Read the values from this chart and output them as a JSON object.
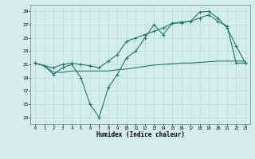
{
  "title": "",
  "xlabel": "Humidex (Indice chaleur)",
  "bg_color": "#d4eeea",
  "line_color": "#1e7a6e",
  "grid_color": "#b8ddd8",
  "xlim": [
    -0.5,
    23.5
  ],
  "ylim": [
    12,
    30
  ],
  "xticks": [
    0,
    1,
    2,
    3,
    4,
    5,
    6,
    7,
    8,
    9,
    10,
    11,
    12,
    13,
    14,
    15,
    16,
    17,
    18,
    19,
    20,
    21,
    22,
    23
  ],
  "yticks": [
    13,
    15,
    17,
    19,
    21,
    23,
    25,
    27,
    29
  ],
  "line1_x": [
    0,
    1,
    2,
    3,
    4,
    5,
    6,
    7,
    8,
    9,
    10,
    11,
    12,
    13,
    14,
    15,
    16,
    17,
    18,
    19,
    20,
    21,
    22,
    23
  ],
  "line1_y": [
    21.2,
    20.8,
    19.5,
    20.5,
    21.0,
    19.0,
    15.0,
    13.0,
    17.5,
    19.5,
    22.0,
    23.0,
    25.0,
    27.0,
    25.5,
    27.2,
    27.4,
    27.5,
    28.9,
    29.0,
    28.0,
    26.5,
    23.8,
    21.2
  ],
  "line2_x": [
    0,
    1,
    2,
    3,
    4,
    5,
    6,
    7,
    8,
    9,
    10,
    11,
    12,
    13,
    14,
    15,
    16,
    17,
    18,
    19,
    20,
    21,
    22,
    23
  ],
  "line2_y": [
    21.2,
    20.8,
    20.5,
    21.0,
    21.2,
    21.0,
    20.8,
    20.5,
    21.5,
    22.5,
    24.5,
    25.0,
    25.5,
    26.0,
    26.5,
    27.2,
    27.3,
    27.5,
    28.0,
    28.5,
    27.5,
    26.8,
    21.2,
    21.2
  ],
  "line3_x": [
    0,
    1,
    2,
    3,
    4,
    5,
    6,
    7,
    8,
    9,
    10,
    11,
    12,
    13,
    14,
    15,
    16,
    17,
    18,
    19,
    20,
    21,
    22,
    23
  ],
  "line3_y": [
    21.2,
    20.8,
    19.8,
    19.8,
    20.0,
    20.0,
    20.0,
    20.0,
    20.0,
    20.2,
    20.3,
    20.5,
    20.7,
    20.9,
    21.0,
    21.1,
    21.2,
    21.2,
    21.3,
    21.4,
    21.5,
    21.5,
    21.5,
    21.5
  ]
}
